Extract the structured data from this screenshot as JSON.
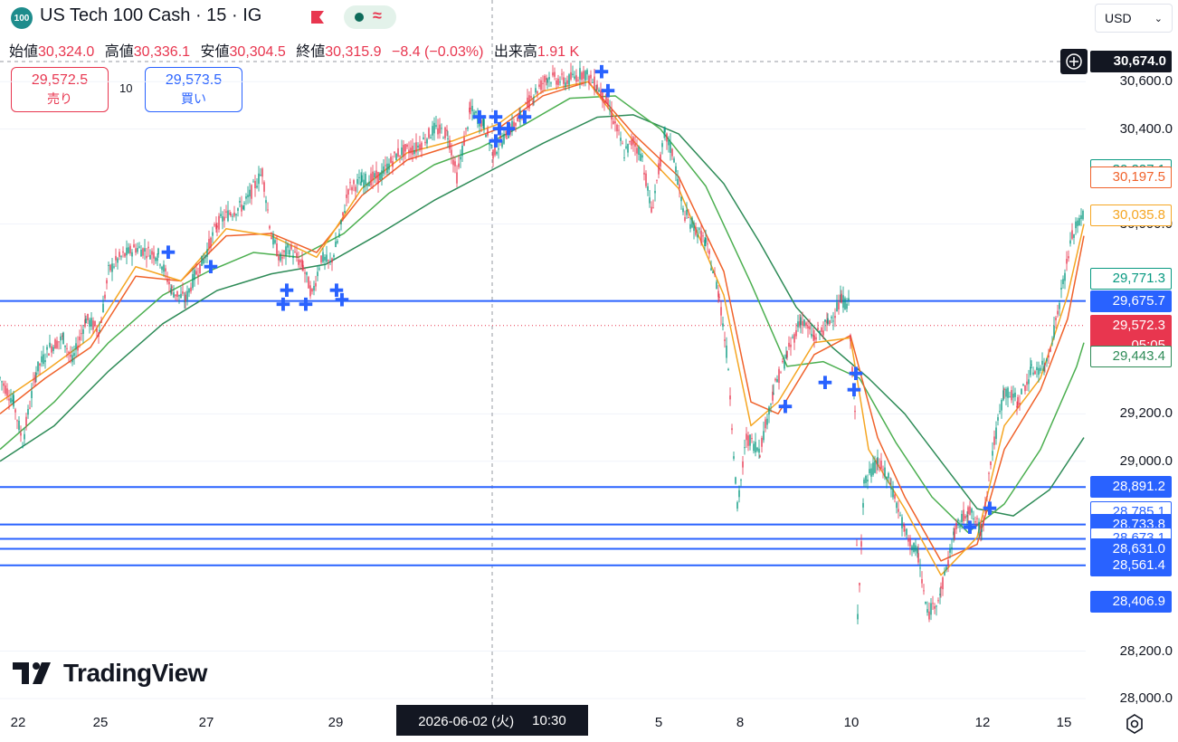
{
  "header": {
    "badge": "100",
    "title": "US Tech 100 Cash · 15 · IG",
    "currency": "USD"
  },
  "ohlc": {
    "open_label": "始値",
    "open": "30,324.0",
    "high_label": "高値",
    "high": "30,336.1",
    "low_label": "安値",
    "low": "30,304.5",
    "close_label": "終値",
    "close": "30,315.9",
    "change": "−8.4 (−0.03%)",
    "volume_label": "出来高",
    "volume": "1.91 K"
  },
  "trade": {
    "sell_price": "29,572.5",
    "sell_label": "売り",
    "spread": "10",
    "buy_price": "29,573.5",
    "buy_label": "買い"
  },
  "crosshair": {
    "date": "2026-06-02 (火)",
    "time": "10:30",
    "price": "30,674.0"
  },
  "logo_text": "TradingView",
  "colors": {
    "up": "#089981",
    "down": "#e8364f",
    "blue": "#2962ff",
    "ma_orange": "#f5a623",
    "ma_red": "#f0622b",
    "ma_green": "#4caf50",
    "ma_darkgreen": "#2e8b57"
  },
  "chart_data": {
    "type": "line",
    "y_ticks": [
      "30,600.0",
      "30,400.0",
      "30,000.0",
      "29,200.0",
      "29,000.0",
      "28,200.0",
      "28,000.0"
    ],
    "x_ticks": [
      "22",
      "25",
      "27",
      "29",
      "5",
      "8",
      "10",
      "12",
      "15"
    ],
    "ylim": [
      28000,
      30700
    ],
    "price_series": [
      [
        0,
        29350
      ],
      [
        15,
        29250
      ],
      [
        25,
        29080
      ],
      [
        40,
        29380
      ],
      [
        55,
        29480
      ],
      [
        70,
        29520
      ],
      [
        80,
        29420
      ],
      [
        95,
        29600
      ],
      [
        110,
        29550
      ],
      [
        120,
        29800
      ],
      [
        130,
        29850
      ],
      [
        150,
        29900
      ],
      [
        175,
        29870
      ],
      [
        190,
        29720
      ],
      [
        205,
        29680
      ],
      [
        215,
        29780
      ],
      [
        225,
        29850
      ],
      [
        240,
        30000
      ],
      [
        255,
        30050
      ],
      [
        270,
        30080
      ],
      [
        280,
        30150
      ],
      [
        290,
        30220
      ],
      [
        300,
        29950
      ],
      [
        310,
        29850
      ],
      [
        320,
        29900
      ],
      [
        335,
        29820
      ],
      [
        345,
        29700
      ],
      [
        355,
        29860
      ],
      [
        365,
        29830
      ],
      [
        375,
        29950
      ],
      [
        385,
        30150
      ],
      [
        400,
        30180
      ],
      [
        420,
        30200
      ],
      [
        440,
        30300
      ],
      [
        460,
        30320
      ],
      [
        480,
        30400
      ],
      [
        495,
        30380
      ],
      [
        505,
        30200
      ],
      [
        520,
        30480
      ],
      [
        535,
        30420
      ],
      [
        545,
        30300
      ],
      [
        560,
        30380
      ],
      [
        575,
        30450
      ],
      [
        590,
        30550
      ],
      [
        605,
        30620
      ],
      [
        625,
        30600
      ],
      [
        645,
        30640
      ],
      [
        660,
        30580
      ],
      [
        670,
        30520
      ],
      [
        680,
        30420
      ],
      [
        690,
        30300
      ],
      [
        700,
        30350
      ],
      [
        710,
        30280
      ],
      [
        720,
        30050
      ],
      [
        735,
        30380
      ],
      [
        745,
        30280
      ],
      [
        755,
        30050
      ],
      [
        765,
        30000
      ],
      [
        780,
        29920
      ],
      [
        795,
        29700
      ],
      [
        805,
        29400
      ],
      [
        815,
        28800
      ],
      [
        825,
        29100
      ],
      [
        840,
        29050
      ],
      [
        855,
        29300
      ],
      [
        870,
        29450
      ],
      [
        885,
        29600
      ],
      [
        900,
        29520
      ],
      [
        915,
        29580
      ],
      [
        930,
        29680
      ],
      [
        938,
        29660
      ],
      [
        945,
        29200
      ],
      [
        948,
        28350
      ],
      [
        955,
        28900
      ],
      [
        970,
        29000
      ],
      [
        985,
        28900
      ],
      [
        1000,
        28700
      ],
      [
        1015,
        28600
      ],
      [
        1025,
        28350
      ],
      [
        1040,
        28450
      ],
      [
        1055,
        28700
      ],
      [
        1070,
        28800
      ],
      [
        1085,
        28700
      ],
      [
        1095,
        29000
      ],
      [
        1110,
        29300
      ],
      [
        1125,
        29250
      ],
      [
        1140,
        29380
      ],
      [
        1155,
        29400
      ],
      [
        1165,
        29550
      ],
      [
        1175,
        29750
      ],
      [
        1185,
        29950
      ],
      [
        1198,
        30050
      ]
    ],
    "ma_orange": [
      [
        0,
        29250
      ],
      [
        50,
        29380
      ],
      [
        100,
        29520
      ],
      [
        150,
        29820
      ],
      [
        200,
        29760
      ],
      [
        250,
        29980
      ],
      [
        300,
        29950
      ],
      [
        350,
        29860
      ],
      [
        400,
        30150
      ],
      [
        450,
        30300
      ],
      [
        500,
        30350
      ],
      [
        550,
        30420
      ],
      [
        600,
        30560
      ],
      [
        650,
        30600
      ],
      [
        700,
        30350
      ],
      [
        750,
        30150
      ],
      [
        800,
        29700
      ],
      [
        830,
        29150
      ],
      [
        860,
        29250
      ],
      [
        900,
        29500
      ],
      [
        940,
        29520
      ],
      [
        960,
        29050
      ],
      [
        1000,
        28800
      ],
      [
        1040,
        28520
      ],
      [
        1080,
        28680
      ],
      [
        1110,
        29150
      ],
      [
        1150,
        29350
      ],
      [
        1180,
        29700
      ],
      [
        1198,
        30000
      ]
    ],
    "ma_red": [
      [
        0,
        29200
      ],
      [
        50,
        29350
      ],
      [
        100,
        29480
      ],
      [
        150,
        29780
      ],
      [
        200,
        29760
      ],
      [
        250,
        29950
      ],
      [
        300,
        29960
      ],
      [
        350,
        29880
      ],
      [
        400,
        30120
      ],
      [
        450,
        30270
      ],
      [
        500,
        30330
      ],
      [
        550,
        30400
      ],
      [
        600,
        30540
      ],
      [
        650,
        30600
      ],
      [
        700,
        30380
      ],
      [
        750,
        30200
      ],
      [
        800,
        29800
      ],
      [
        830,
        29250
      ],
      [
        860,
        29200
      ],
      [
        900,
        29450
      ],
      [
        940,
        29530
      ],
      [
        970,
        29100
      ],
      [
        1000,
        28850
      ],
      [
        1040,
        28580
      ],
      [
        1080,
        28650
      ],
      [
        1110,
        29050
      ],
      [
        1150,
        29300
      ],
      [
        1180,
        29600
      ],
      [
        1198,
        29950
      ]
    ],
    "ma_green": [
      [
        0,
        29050
      ],
      [
        60,
        29250
      ],
      [
        120,
        29500
      ],
      [
        180,
        29700
      ],
      [
        230,
        29800
      ],
      [
        280,
        29880
      ],
      [
        330,
        29860
      ],
      [
        380,
        29960
      ],
      [
        430,
        30130
      ],
      [
        480,
        30250
      ],
      [
        530,
        30320
      ],
      [
        580,
        30420
      ],
      [
        630,
        30530
      ],
      [
        680,
        30540
      ],
      [
        730,
        30400
      ],
      [
        780,
        30160
      ],
      [
        830,
        29750
      ],
      [
        870,
        29400
      ],
      [
        910,
        29420
      ],
      [
        950,
        29350
      ],
      [
        990,
        29080
      ],
      [
        1030,
        28850
      ],
      [
        1070,
        28700
      ],
      [
        1110,
        28820
      ],
      [
        1150,
        29050
      ],
      [
        1190,
        29400
      ],
      [
        1198,
        29500
      ]
    ],
    "ma_darkgreen": [
      [
        0,
        29000
      ],
      [
        60,
        29150
      ],
      [
        120,
        29380
      ],
      [
        180,
        29580
      ],
      [
        240,
        29720
      ],
      [
        300,
        29790
      ],
      [
        360,
        29830
      ],
      [
        420,
        29960
      ],
      [
        480,
        30100
      ],
      [
        540,
        30220
      ],
      [
        600,
        30340
      ],
      [
        660,
        30450
      ],
      [
        700,
        30460
      ],
      [
        750,
        30380
      ],
      [
        800,
        30170
      ],
      [
        840,
        29920
      ],
      [
        880,
        29650
      ],
      [
        920,
        29480
      ],
      [
        960,
        29350
      ],
      [
        1000,
        29200
      ],
      [
        1040,
        29000
      ],
      [
        1080,
        28800
      ],
      [
        1120,
        28770
      ],
      [
        1160,
        28880
      ],
      [
        1198,
        29100
      ]
    ],
    "markers": [
      [
        186,
        29880
      ],
      [
        233,
        29820
      ],
      [
        317,
        29720
      ],
      [
        313,
        29660
      ],
      [
        338,
        29660
      ],
      [
        372,
        29720
      ],
      [
        378,
        29680
      ],
      [
        530,
        30450
      ],
      [
        548,
        30450
      ],
      [
        552,
        30400
      ],
      [
        562,
        30400
      ],
      [
        548,
        30350
      ],
      [
        580,
        30450
      ],
      [
        665,
        30640
      ],
      [
        672,
        30560
      ],
      [
        868,
        29230
      ],
      [
        912,
        29330
      ],
      [
        946,
        29370
      ],
      [
        944,
        29300
      ],
      [
        1072,
        28720
      ],
      [
        1094,
        28800
      ]
    ],
    "h_lines": [
      29675.7,
      28891.2,
      28733.8,
      28673.1,
      28631.0,
      28561.4
    ],
    "price_tags": [
      {
        "text": "30,227.1",
        "style": "outline-green"
      },
      {
        "text": "30,197.5",
        "style": "outline-red"
      },
      {
        "text": "30,035.8",
        "style": "outline-orange"
      },
      {
        "text": "29,771.3",
        "style": "outline-green"
      },
      {
        "text": "29,675.7",
        "style": "solid-blue"
      },
      {
        "text": "29,572.3",
        "style": "solid-red",
        "sub": "05:05"
      },
      {
        "text": "29,443.4",
        "style": "outline-darkgreen"
      },
      {
        "text": "28,891.2",
        "style": "solid-blue"
      },
      {
        "text": "28,785.1",
        "style": "outline-blue"
      },
      {
        "text": "28,733.8",
        "style": "solid-blue"
      },
      {
        "text": "28,673.1",
        "style": "outline-blue"
      },
      {
        "text": "28,631.0",
        "style": "solid-blue"
      },
      {
        "text": "28,561.4",
        "style": "solid-blue"
      },
      {
        "text": "28,406.9",
        "style": "solid-blue"
      }
    ]
  }
}
